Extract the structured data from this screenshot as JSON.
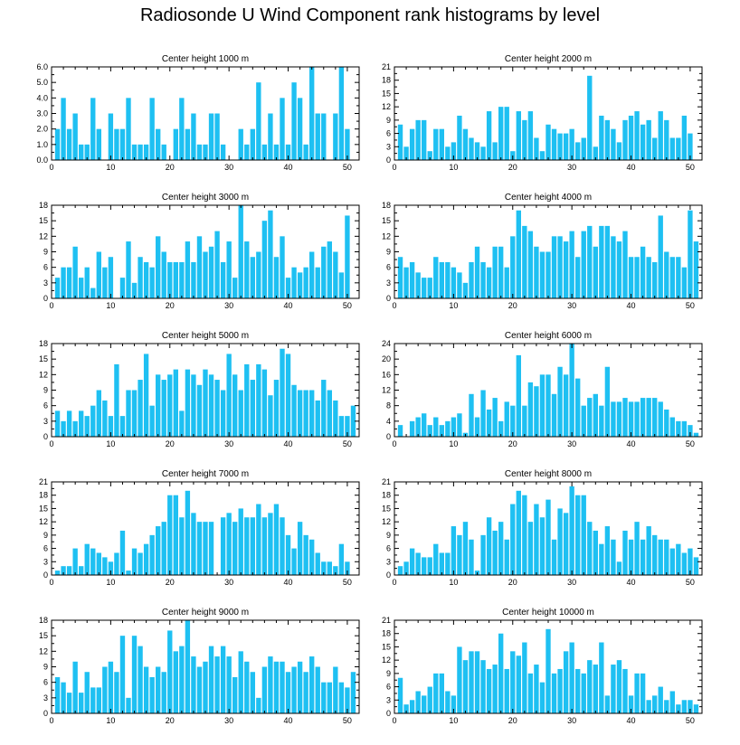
{
  "title": "Radiosonde U Wind Component rank histograms by level",
  "colors": {
    "bar": "#1ec0f2",
    "axis": "#000000",
    "background": "#ffffff"
  },
  "chart_data": [
    {
      "type": "bar",
      "title": "Center height 1000 m",
      "xlim": [
        0,
        52
      ],
      "xticks": [
        0,
        10,
        20,
        30,
        40,
        50
      ],
      "ylim": [
        0,
        6
      ],
      "yticks": [
        0,
        1,
        2,
        3,
        4,
        5,
        6
      ],
      "ytick_labels": [
        "0.0",
        "1.0",
        "2.0",
        "3.0",
        "4.0",
        "5.0",
        "6.0"
      ],
      "values": [
        2,
        4,
        2,
        3,
        1,
        1,
        4,
        2,
        0,
        3,
        2,
        2,
        4,
        1,
        1,
        1,
        4,
        2,
        1,
        0,
        2,
        4,
        2,
        3,
        1,
        1,
        3,
        3,
        1,
        0,
        0,
        2,
        1,
        2,
        5,
        1,
        3,
        1,
        4,
        1,
        5,
        4,
        1,
        6,
        3,
        3,
        0,
        3,
        6,
        2,
        0
      ]
    },
    {
      "type": "bar",
      "title": "Center height 2000 m",
      "xlim": [
        0,
        52
      ],
      "xticks": [
        0,
        10,
        20,
        30,
        40,
        50
      ],
      "ylim": [
        0,
        21
      ],
      "yticks": [
        0,
        3,
        6,
        9,
        12,
        15,
        18,
        21
      ],
      "ytick_labels": [
        "0",
        "3",
        "6",
        "9",
        "12",
        "15",
        "18",
        "21"
      ],
      "values": [
        8,
        3,
        7,
        9,
        9,
        2,
        7,
        7,
        3,
        4,
        10,
        7,
        5,
        4,
        3,
        11,
        4,
        12,
        12,
        2,
        11,
        9,
        11,
        5,
        2,
        8,
        7,
        6,
        6,
        7,
        4,
        5,
        19,
        3,
        10,
        9,
        7,
        4,
        9,
        10,
        11,
        8,
        9,
        5,
        11,
        9,
        5,
        5,
        10,
        6,
        0
      ]
    },
    {
      "type": "bar",
      "title": "Center height 3000 m",
      "xlim": [
        0,
        52
      ],
      "xticks": [
        0,
        10,
        20,
        30,
        40,
        50
      ],
      "ylim": [
        0,
        18
      ],
      "yticks": [
        0,
        3,
        6,
        9,
        12,
        15,
        18
      ],
      "ytick_labels": [
        "0",
        "3",
        "6",
        "9",
        "12",
        "15",
        "18"
      ],
      "values": [
        4,
        6,
        6,
        10,
        4,
        6,
        2,
        9,
        6,
        8,
        0,
        4,
        11,
        3,
        8,
        7,
        6,
        12,
        9,
        7,
        7,
        7,
        11,
        7,
        12,
        9,
        10,
        13,
        7,
        11,
        4,
        18,
        11,
        8,
        9,
        15,
        17,
        8,
        12,
        4,
        6,
        5,
        6,
        9,
        6,
        10,
        11,
        9,
        5,
        16,
        0
      ]
    },
    {
      "type": "bar",
      "title": "Center height 4000 m",
      "xlim": [
        0,
        52
      ],
      "xticks": [
        0,
        10,
        20,
        30,
        40,
        50
      ],
      "ylim": [
        0,
        18
      ],
      "yticks": [
        0,
        3,
        6,
        9,
        12,
        15,
        18
      ],
      "ytick_labels": [
        "0",
        "3",
        "6",
        "9",
        "12",
        "15",
        "18"
      ],
      "values": [
        8,
        6,
        7,
        5,
        4,
        4,
        8,
        7,
        7,
        6,
        5,
        3,
        7,
        10,
        7,
        6,
        10,
        10,
        6,
        12,
        17,
        14,
        13,
        10,
        9,
        9,
        12,
        12,
        11,
        13,
        8,
        13,
        14,
        10,
        14,
        14,
        12,
        11,
        13,
        8,
        8,
        10,
        8,
        7,
        16,
        9,
        8,
        8,
        6,
        17,
        11
      ]
    },
    {
      "type": "bar",
      "title": "Center height 5000 m",
      "xlim": [
        0,
        52
      ],
      "xticks": [
        0,
        10,
        20,
        30,
        40,
        50
      ],
      "ylim": [
        0,
        18
      ],
      "yticks": [
        0,
        3,
        6,
        9,
        12,
        15,
        18
      ],
      "ytick_labels": [
        "0",
        "3",
        "6",
        "9",
        "12",
        "15",
        "18"
      ],
      "values": [
        5,
        3,
        5,
        3,
        5,
        4,
        6,
        9,
        7,
        4,
        14,
        4,
        9,
        9,
        11,
        16,
        6,
        12,
        11,
        12,
        13,
        5,
        13,
        12,
        10,
        13,
        12,
        11,
        9,
        16,
        12,
        9,
        14,
        11,
        14,
        13,
        8,
        11,
        17,
        16,
        10,
        9,
        9,
        9,
        7,
        11,
        9,
        7,
        4,
        4,
        6
      ]
    },
    {
      "type": "bar",
      "title": "Center height 6000 m",
      "xlim": [
        0,
        52
      ],
      "xticks": [
        0,
        10,
        20,
        30,
        40,
        50
      ],
      "ylim": [
        0,
        24
      ],
      "yticks": [
        0,
        4,
        8,
        12,
        16,
        20,
        24
      ],
      "ytick_labels": [
        "0",
        "4",
        "8",
        "12",
        "16",
        "20",
        "24"
      ],
      "values": [
        3,
        0,
        4,
        5,
        6,
        3,
        5,
        3,
        4,
        5,
        6,
        1,
        11,
        5,
        12,
        7,
        10,
        4,
        9,
        8,
        21,
        8,
        14,
        13,
        16,
        16,
        11,
        18,
        16,
        24,
        15,
        8,
        10,
        11,
        8,
        18,
        9,
        9,
        10,
        9,
        9,
        10,
        10,
        10,
        9,
        7,
        5,
        4,
        4,
        3,
        1
      ]
    },
    {
      "type": "bar",
      "title": "Center height 7000 m",
      "xlim": [
        0,
        52
      ],
      "xticks": [
        0,
        10,
        20,
        30,
        40,
        50
      ],
      "ylim": [
        0,
        21
      ],
      "yticks": [
        0,
        3,
        6,
        9,
        12,
        15,
        18,
        21
      ],
      "ytick_labels": [
        "0",
        "3",
        "6",
        "9",
        "12",
        "15",
        "18",
        "21"
      ],
      "values": [
        1,
        2,
        2,
        6,
        2,
        7,
        6,
        5,
        4,
        3,
        5,
        10,
        1,
        6,
        5,
        7,
        9,
        11,
        12,
        18,
        18,
        13,
        19,
        14,
        12,
        12,
        12,
        0,
        13,
        14,
        12,
        15,
        13,
        13,
        16,
        13,
        14,
        16,
        13,
        9,
        6,
        12,
        9,
        8,
        5,
        3,
        3,
        2,
        7,
        3,
        0
      ]
    },
    {
      "type": "bar",
      "title": "Center height 8000 m",
      "xlim": [
        0,
        52
      ],
      "xticks": [
        0,
        10,
        20,
        30,
        40,
        50
      ],
      "ylim": [
        0,
        21
      ],
      "yticks": [
        0,
        3,
        6,
        9,
        12,
        15,
        18,
        21
      ],
      "ytick_labels": [
        "0",
        "3",
        "6",
        "9",
        "12",
        "15",
        "18",
        "21"
      ],
      "values": [
        2,
        3,
        6,
        5,
        4,
        4,
        7,
        5,
        5,
        11,
        9,
        12,
        8,
        1,
        9,
        13,
        10,
        12,
        8,
        16,
        19,
        18,
        12,
        16,
        13,
        17,
        8,
        15,
        14,
        20,
        18,
        18,
        12,
        10,
        7,
        11,
        8,
        3,
        10,
        8,
        12,
        8,
        11,
        9,
        8,
        8,
        6,
        7,
        5,
        6,
        4
      ]
    },
    {
      "type": "bar",
      "title": "Center height 9000 m",
      "xlim": [
        0,
        52
      ],
      "xticks": [
        0,
        10,
        20,
        30,
        40,
        50
      ],
      "ylim": [
        0,
        18
      ],
      "yticks": [
        0,
        3,
        6,
        9,
        12,
        15,
        18
      ],
      "ytick_labels": [
        "0",
        "3",
        "6",
        "9",
        "12",
        "15",
        "18"
      ],
      "values": [
        7,
        6,
        4,
        10,
        4,
        8,
        5,
        5,
        9,
        10,
        8,
        15,
        3,
        15,
        13,
        9,
        7,
        9,
        8,
        16,
        12,
        13,
        18,
        11,
        9,
        10,
        13,
        11,
        13,
        11,
        7,
        12,
        10,
        8,
        3,
        9,
        11,
        10,
        10,
        8,
        9,
        10,
        8,
        11,
        9,
        6,
        6,
        9,
        6,
        5,
        8
      ]
    },
    {
      "type": "bar",
      "title": "Center height 10000 m",
      "xlim": [
        0,
        52
      ],
      "xticks": [
        0,
        10,
        20,
        30,
        40,
        50
      ],
      "ylim": [
        0,
        21
      ],
      "yticks": [
        0,
        3,
        6,
        9,
        12,
        15,
        18,
        21
      ],
      "ytick_labels": [
        "0",
        "3",
        "6",
        "9",
        "12",
        "15",
        "18",
        "21"
      ],
      "values": [
        8,
        2,
        3,
        5,
        4,
        6,
        9,
        9,
        5,
        4,
        15,
        12,
        14,
        14,
        12,
        10,
        11,
        18,
        10,
        14,
        13,
        16,
        9,
        11,
        7,
        19,
        9,
        10,
        14,
        16,
        10,
        9,
        12,
        11,
        16,
        4,
        11,
        12,
        10,
        4,
        9,
        9,
        3,
        4,
        6,
        3,
        5,
        2,
        3,
        3,
        2
      ]
    }
  ]
}
